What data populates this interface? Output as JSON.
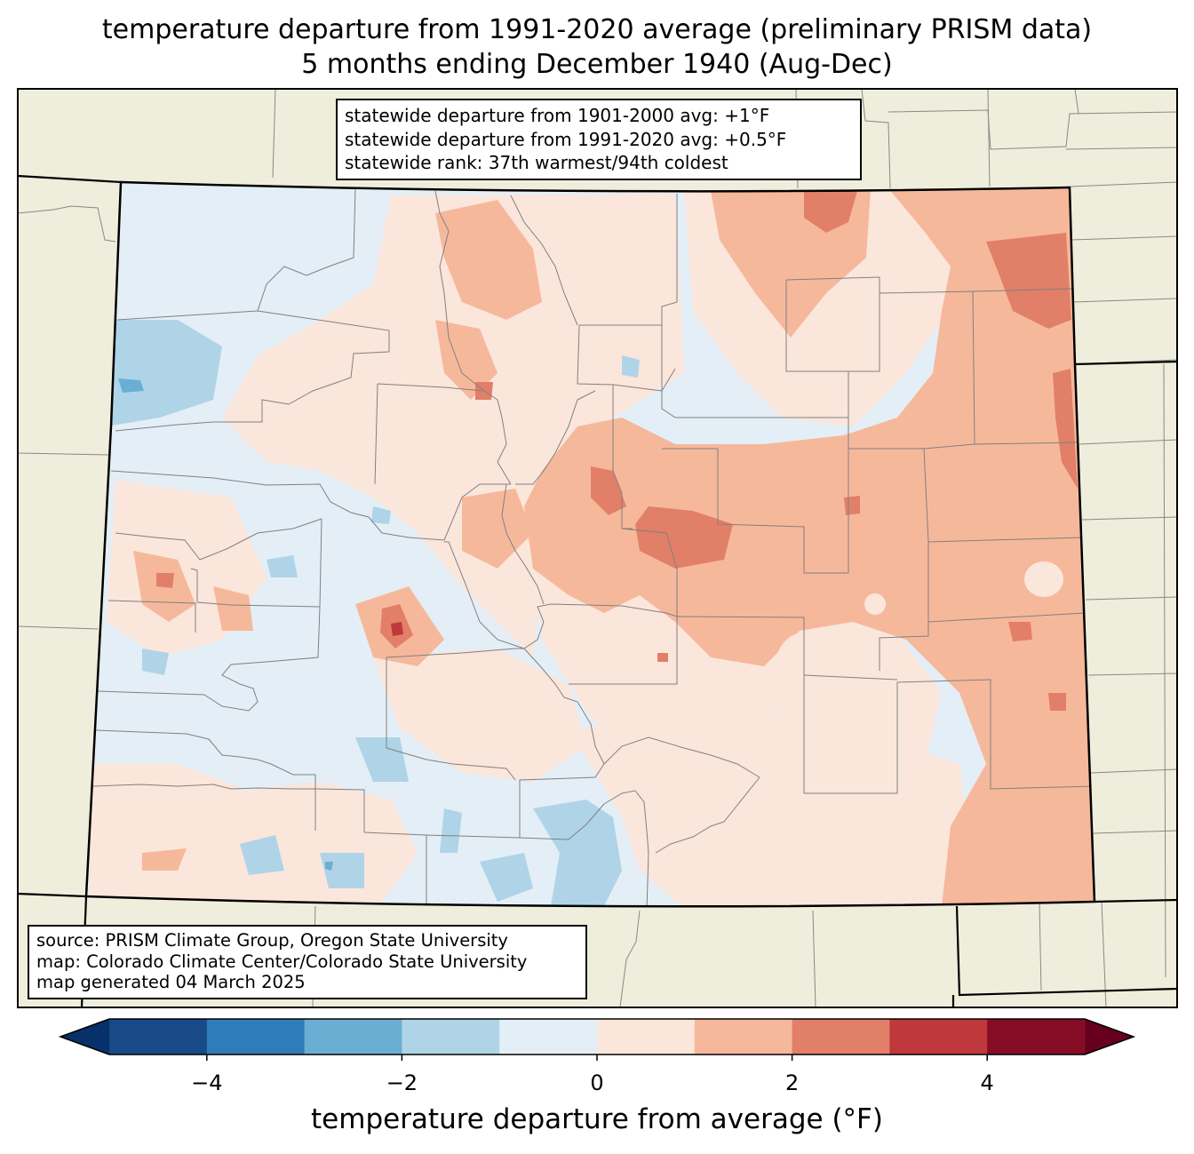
{
  "title": {
    "line1": "temperature departure from 1991-2020 average (preliminary PRISM data)",
    "line2": "5 months ending December 1940 (Aug-Dec)"
  },
  "stats": {
    "line1": "statewide departure from 1901-2000 avg: +1°F",
    "line2": "statewide departure from 1991-2020 avg: +0.5°F",
    "line3": "statewide rank: 37th warmest/94th coldest"
  },
  "source": {
    "line1": "source: PRISM Climate Group, Oregon State University",
    "line2": "map: Colorado Climate Center/Colorado State University",
    "line3": "map generated 04 March 2025"
  },
  "colorbar": {
    "label": "temperature departure from average (°F)",
    "min": -5,
    "max": 5,
    "colors": [
      "#174a87",
      "#2f7cba",
      "#6aafd3",
      "#afd4e7",
      "#e4eef6",
      "#fbe6dc",
      "#f6b89b",
      "#e27f69",
      "#bf383b",
      "#870d26"
    ],
    "under_color": "#08306b",
    "over_color": "#67001f",
    "ticks": [
      {
        "value": -4,
        "label": "−4"
      },
      {
        "value": -2,
        "label": "−2"
      },
      {
        "value": 0,
        "label": "0"
      },
      {
        "value": 2,
        "label": "2"
      },
      {
        "value": 4,
        "label": "4"
      }
    ]
  },
  "colors": {
    "land_outside": "#efeedc",
    "state_border": "#000000",
    "county_line": "#808080"
  }
}
